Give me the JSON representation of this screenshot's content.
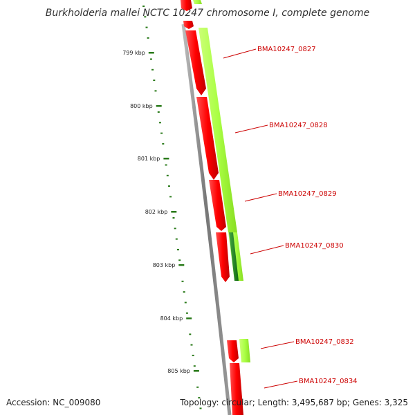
{
  "title": "Burkholderia mallei NCTC 10247 chromosome I, complete genome",
  "footer": {
    "accession": "Accession: NC_009080",
    "summary": "Topology: circular; Length: 3,495,687 bp; Genes: 3,325"
  },
  "ruler": {
    "labels": [
      "799 kbp",
      "800 kbp",
      "801 kbp",
      "802 kbp",
      "803 kbp",
      "804 kbp",
      "805 kbp"
    ]
  },
  "genes": [
    {
      "label": "BMA10247_0827",
      "strand": "reverse",
      "colors": {
        "cds": "#ff0000",
        "gene": "#aaff44"
      }
    },
    {
      "label": "BMA10247_0828",
      "strand": "reverse",
      "colors": {
        "cds": "#ff0000",
        "gene": "#aaff44"
      }
    },
    {
      "label": "BMA10247_0829",
      "strand": "reverse",
      "colors": {
        "cds": "#ff0000",
        "gene": "#aaff44"
      }
    },
    {
      "label": "BMA10247_0830",
      "strand": "reverse",
      "colors": {
        "cds": "#ff0000",
        "gene": "#228833"
      }
    },
    {
      "label": "BMA10247_0832",
      "strand": "reverse",
      "colors": {
        "cds": "#ff0000",
        "gene": "#aaff44"
      }
    },
    {
      "label": "BMA10247_0834",
      "strand": "reverse",
      "colors": {
        "cds": "#ff0000",
        "gene": "#aaff44"
      }
    }
  ],
  "colors": {
    "backbone": "#888888",
    "ruler_ticks": "#2a7a1a",
    "cds": "#ff0000",
    "gene": "#aaff44",
    "gene_dark": "#228833",
    "label": "#cc0000"
  }
}
